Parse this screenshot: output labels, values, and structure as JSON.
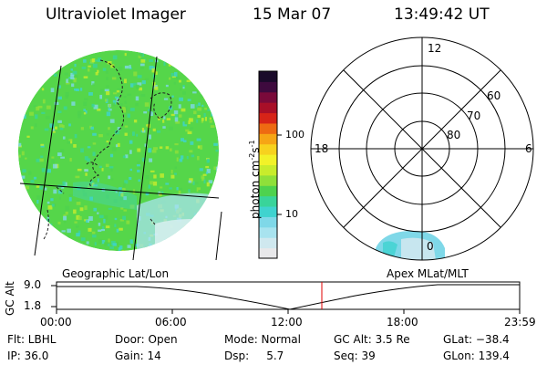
{
  "header": {
    "title": "Ultraviolet Imager",
    "date": "15 Mar 07",
    "time": "13:49:42 UT"
  },
  "colorbar": {
    "label": "photon cm",
    "label_sup1": "-2",
    "label_mid": "s",
    "label_sup2": "-1",
    "tick_100": "100",
    "tick_10": "10",
    "colors": [
      "#e8e8ea",
      "#cfe8ef",
      "#a8e3ef",
      "#7fd8e8",
      "#3fd3cf",
      "#39d49a",
      "#4ed24e",
      "#8fe03a",
      "#c8ec2c",
      "#f2f228",
      "#f7d21e",
      "#f6a515",
      "#ee6a12",
      "#d62418",
      "#a80f28",
      "#7a0a3a",
      "#3e0a3e",
      "#1a0a2a"
    ]
  },
  "geo_panel": {
    "label": "Geographic Lat/Lon"
  },
  "polar": {
    "label": "Apex MLat/MLT",
    "hour_top": "12",
    "hour_left": "18",
    "hour_right": "6",
    "hour_bottom": "0",
    "lat_60": "60",
    "lat_70": "70",
    "lat_80": "80"
  },
  "alt_plot": {
    "ylabel": "GC Alt",
    "y_top": "9.0",
    "y_bottom": "1.8",
    "x_ticks": [
      "00:00",
      "06:00",
      "12:00",
      "18:00",
      "23:59"
    ]
  },
  "footer": {
    "flt": "Flt: LBHL",
    "ip": "IP: 36.0",
    "door": "Door: Open",
    "gain": "Gain: 14",
    "mode": "Mode: Normal",
    "dsp": "Dsp:     5.7",
    "gcalt": "GC Alt: 3.5 Re",
    "seq": "Seq: 39",
    "glat": "GLat: −38.4",
    "glon": "GLon: 139.4"
  }
}
